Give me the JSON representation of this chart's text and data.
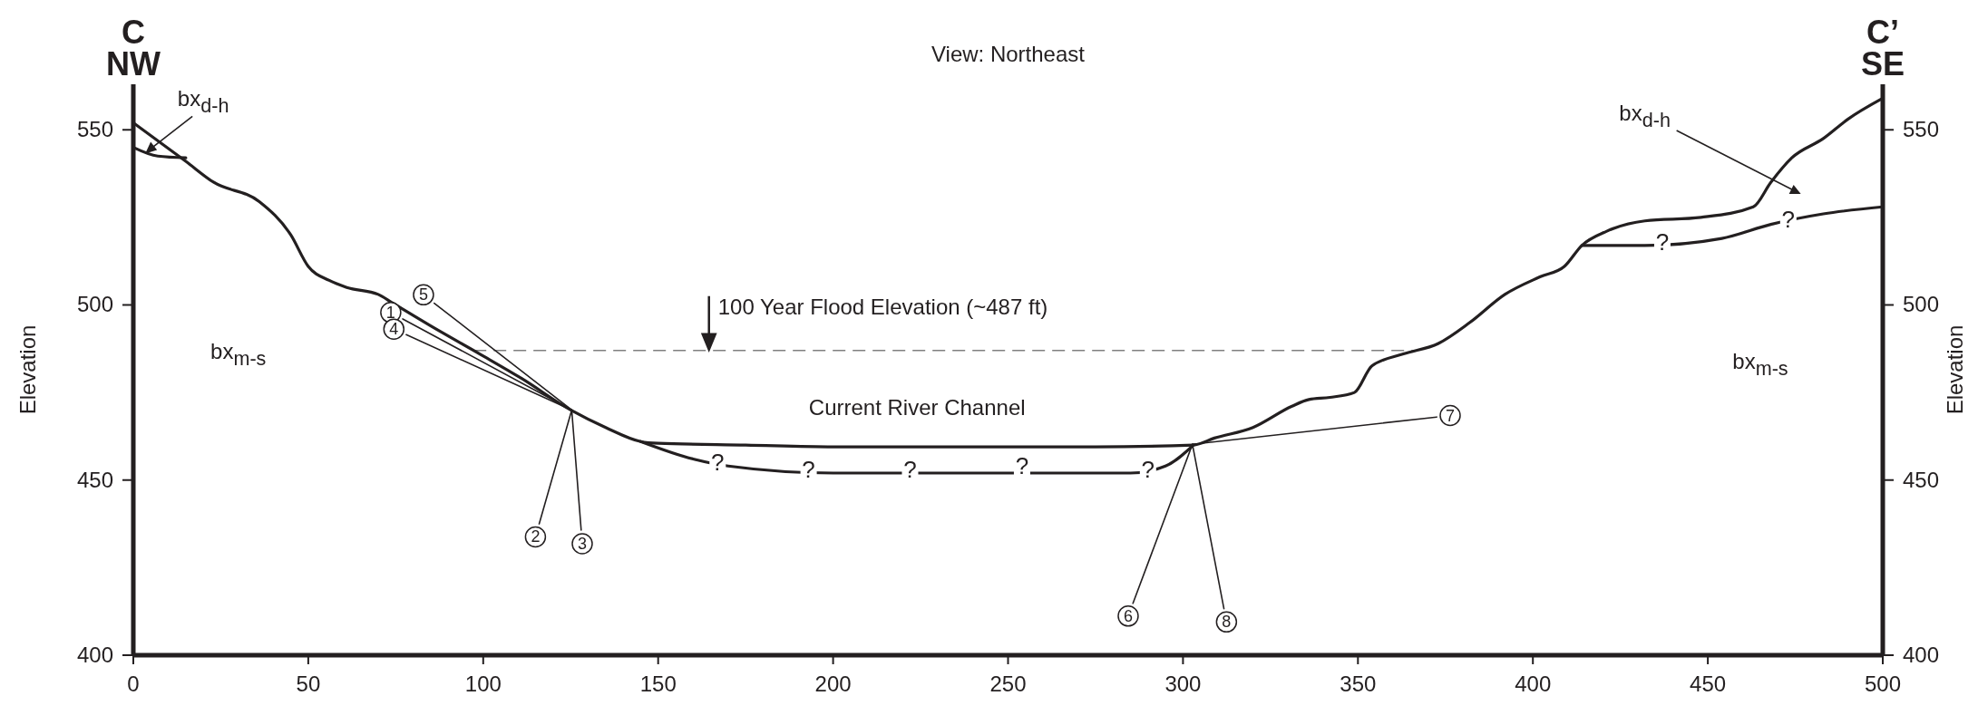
{
  "chart_data": {
    "type": "line",
    "title": "View: Northeast",
    "ylabel": "Elevation",
    "y2label": "Elevation",
    "xlim": [
      0,
      500
    ],
    "xticks": [
      0,
      50,
      100,
      150,
      200,
      250,
      300,
      350,
      400,
      450,
      500
    ],
    "ylim": [
      400,
      563
    ],
    "yticks": [
      400,
      450,
      500,
      550
    ],
    "y2lim": [
      400,
      563
    ],
    "y2ticks": [
      400,
      450,
      500,
      550
    ],
    "series": [
      {
        "color": "#231f20",
        "x": [
          0,
          15,
          23,
          36,
          45,
          50,
          56,
          61,
          70,
          74,
          85,
          99,
          111,
          125,
          135,
          145,
          150,
          175,
          200,
          225,
          250,
          275,
          303,
          309,
          320,
          331,
          336,
          342,
          349,
          354,
          363,
          373,
          382,
          392,
          402,
          409,
          414,
          421,
          432,
          448,
          463,
          468,
          474,
          483,
          490,
          500
        ],
        "values": [
          552,
          541,
          535,
          529.5,
          520,
          511,
          507,
          505,
          503,
          500.6,
          494,
          486,
          479,
          470,
          465,
          461,
          460.5,
          460,
          459.5,
          459.5,
          459.5,
          459.5,
          460,
          462,
          465,
          471,
          473,
          473.6,
          475,
          482.6,
          486,
          489,
          495,
          503,
          508,
          511,
          517,
          521,
          524,
          525,
          528,
          535,
          542,
          547.5,
          553,
          559
        ]
      },
      {
        "color": "#231f20",
        "x": [
          145,
          160,
          170,
          200,
          250,
          285,
          295,
          303
        ],
        "values": [
          461,
          456,
          454,
          452,
          452,
          452,
          454,
          460
        ]
      },
      {
        "color": "#231f20",
        "x": [
          414,
          432,
          454,
          468,
          483,
          500
        ],
        "values": [
          517,
          517,
          519,
          523,
          526,
          528
        ]
      },
      {
        "color": "#231f20",
        "x": [
          0,
          7,
          15
        ],
        "values": [
          545,
          542.5,
          542
        ]
      },
      {
        "name": "1",
        "color": "#231f20",
        "x": [
          125.3,
          77
        ],
        "values": [
          470,
          496
        ]
      },
      {
        "name": "2",
        "color": "#231f20",
        "x": [
          125.3,
          116
        ],
        "values": [
          470,
          437.5
        ]
      },
      {
        "name": "3",
        "color": "#231f20",
        "x": [
          125.3,
          128
        ],
        "values": [
          470,
          435.7
        ]
      },
      {
        "name": "4",
        "color": "#231f20",
        "x": [
          125.3,
          78
        ],
        "values": [
          470,
          491.5
        ]
      },
      {
        "name": "5",
        "color": "#231f20",
        "x": [
          125.3,
          86
        ],
        "values": [
          470,
          500.5
        ]
      },
      {
        "name": "6",
        "color": "#231f20",
        "x": [
          302.7,
          285.7
        ],
        "values": [
          460.2,
          414.8
        ]
      },
      {
        "name": "7",
        "color": "#231f20",
        "x": [
          302.7,
          372.5
        ],
        "values": [
          460.2,
          468
        ]
      },
      {
        "name": "8",
        "color": "#231f20",
        "x": [
          302.7,
          311.7
        ],
        "values": [
          460.2,
          413.3
        ]
      }
    ],
    "ref_lines": [
      {
        "axis": "y",
        "value": 487,
        "label": "100 Year Flood Elevation (~487 ft)",
        "color": "#808080",
        "line_style": "dashed"
      }
    ],
    "annotations": [
      "C",
      "NW",
      "C’",
      "SE",
      "bx$_{d-h}$",
      "bx$_{d-h}$",
      "bx$_{m-s}$",
      "bx$_{m-s}$",
      "Current River Channel",
      {
        "text": "?",
        "x": 167,
        "y": 455
      },
      {
        "text": "?",
        "x": 193,
        "y": 453
      },
      {
        "text": "?",
        "x": 222,
        "y": 453
      },
      {
        "text": "?",
        "x": 254,
        "y": 454
      },
      {
        "text": "?",
        "x": 290,
        "y": 453
      },
      {
        "text": "?",
        "x": 437,
        "y": 518
      },
      {
        "text": "?",
        "x": 473,
        "y": 524.5
      }
    ]
  }
}
